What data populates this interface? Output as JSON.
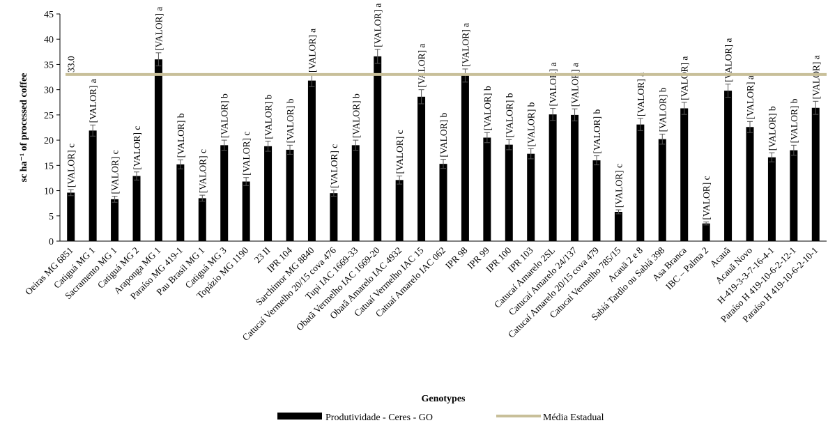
{
  "chart_data": {
    "type": "bar",
    "title": "",
    "xlabel": "Genotypes",
    "ylabel": "sc ha⁻¹ of processed coffee",
    "ylim": [
      0,
      45
    ],
    "yticks": [
      0,
      5,
      10,
      15,
      20,
      25,
      30,
      35,
      40,
      45
    ],
    "grid": false,
    "legend_position": "bottom",
    "categories": [
      "Oeiras MG 6851",
      "Catiguá MG 1",
      "Sacramento MG 1",
      "Catiguá MG 2",
      "Araponga MG 1",
      "Paraíso MG 419-1",
      "Pau Brasil MG 1",
      "Catiguá MG 3",
      "Topázio MG 1190",
      "23 II",
      "IPR 104",
      "Sarchimor MG 8840",
      "Catucaí Vermelho 20/15 cova 476",
      "Tupi IAC 1669-33",
      "Obatã Vermelho IAC 1669-20",
      "Obatã Amarelo IAC 4932",
      "Catuaí Vermelho IAC 15",
      "Catuaí Amarelo IAC 062",
      "IPR 98",
      "IPR 99",
      "IPR 100",
      "IPR 103",
      "Catucaí Amarelo 2SL",
      "Catucaí Amarelo 24/137",
      "Catucaí Amarelo 20/15 cova 479",
      "Catucaí Vermelho 785/15",
      "Acauã 2 e 8",
      "Sabiá Tardio ou Sabiá 398",
      "Asa Branca",
      "IBC – Palma 2",
      "Acauã",
      "Acauã Novo",
      "H-419-3-3-7-16-4-1",
      "Paraíso H 419-10-6-2-12-1",
      "Paraíso H 419-10-6-2-10-1"
    ],
    "series": [
      {
        "name": "Produtividade - Ceres - GO",
        "color": "#000000",
        "values": [
          9.6,
          21.9,
          8.3,
          12.9,
          36.0,
          15.2,
          8.5,
          19.0,
          11.8,
          18.8,
          18.1,
          31.8,
          9.5,
          19.0,
          36.6,
          12.1,
          28.6,
          15.3,
          32.8,
          20.5,
          19.1,
          17.3,
          25.1,
          25.0,
          16.0,
          5.8,
          23.1,
          20.2,
          26.3,
          3.5,
          29.8,
          22.6,
          16.6,
          18.0,
          26.4
        ],
        "error": [
          0.6,
          1.1,
          0.6,
          0.8,
          1.3,
          0.9,
          0.6,
          1.0,
          0.8,
          1.0,
          0.9,
          1.2,
          0.6,
          1.0,
          1.4,
          0.8,
          1.4,
          0.9,
          1.3,
          1.0,
          1.0,
          1.0,
          1.2,
          1.2,
          0.9,
          0.4,
          1.2,
          1.0,
          1.2,
          0.3,
          1.3,
          1.1,
          0.9,
          1.0,
          1.3
        ],
        "labels": [
          "[VALOR] c",
          "[VALOR] a",
          "[VALOR] c",
          "[VALOR] c",
          "[VALOR] a",
          "[VALOR] b",
          "[VALOR] c",
          "[VALOR] b",
          "[VALOR] c",
          "[VALOR] b",
          "[VALOR] b",
          "[VALOR] a",
          "[VALOR] c",
          "[VALOR] b",
          "[VALOR] a",
          "[VALOR] c",
          "[VALOR] a",
          "[VALOR] b",
          "[VALOR] a",
          "[VALOR] b",
          "[VALOR] b",
          "[VALOR] b",
          "[VALOR] a",
          "[VALOR] a",
          "[VALOR] b",
          "[VALOR] c",
          "[VALOR] a",
          "[VALOR] b",
          "[VALOR] a",
          "[VALOR] c",
          "[VALOR] a",
          "[VALOR] a",
          "[VALOR] b",
          "[VALOR] b",
          "[VALOR] a"
        ]
      },
      {
        "name": "Média Estadual",
        "type": "line",
        "color": "#c8bf99",
        "value": 33.0,
        "label": "33.0"
      }
    ]
  }
}
